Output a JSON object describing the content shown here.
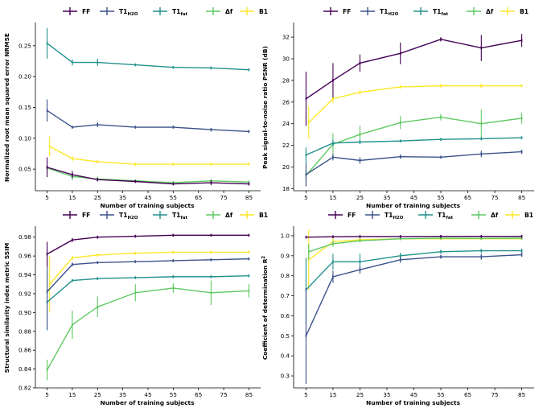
{
  "colors": {
    "FF": "#440154",
    "T1H2O": "#3b528b",
    "T1fat": "#21918c",
    "df": "#5ec962",
    "B1": "#fde725"
  },
  "legend": [
    {
      "key": "FF",
      "main": "FF",
      "sub": ""
    },
    {
      "key": "T1H2O",
      "main": "T1",
      "sub": "H2O"
    },
    {
      "key": "T1fat",
      "main": "T1",
      "sub": "fat"
    },
    {
      "key": "df",
      "main": "Δf",
      "sub": ""
    },
    {
      "key": "B1",
      "main": "B1",
      "sub": ""
    }
  ],
  "chart_data": [
    {
      "type": "line",
      "xlabel": "Number of training subjects",
      "ylabel": "Normalized root mean squared error NRMSE",
      "xticks": [
        5,
        15,
        25,
        35,
        45,
        55,
        65,
        75,
        85
      ],
      "yticks": [
        0.05,
        0.1,
        0.15,
        0.2,
        0.25
      ],
      "ylim": [
        0.015,
        0.285
      ],
      "xlim": [
        1,
        89
      ],
      "series": [
        {
          "key": "FF",
          "x": [
            5,
            15,
            25,
            40,
            55,
            70,
            85
          ],
          "y": [
            0.053,
            0.041,
            0.033,
            0.03,
            0.026,
            0.028,
            0.026
          ],
          "err": [
            0.016,
            0.006,
            0.003,
            0.002,
            0.002,
            0.004,
            0.002
          ]
        },
        {
          "key": "T1H2O",
          "x": [
            5,
            15,
            25,
            40,
            55,
            70,
            85
          ],
          "y": [
            0.145,
            0.118,
            0.122,
            0.118,
            0.118,
            0.114,
            0.111
          ],
          "err": [
            0.018,
            0.002,
            0.004,
            0.002,
            0.002,
            0.003,
            0.002
          ]
        },
        {
          "key": "T1fat",
          "x": [
            5,
            15,
            25,
            40,
            55,
            70,
            85
          ],
          "y": [
            0.254,
            0.223,
            0.223,
            0.219,
            0.215,
            0.214,
            0.211
          ],
          "err": [
            0.025,
            0.005,
            0.006,
            0.002,
            0.001,
            0.002,
            0.001
          ]
        },
        {
          "key": "df",
          "x": [
            5,
            15,
            25,
            40,
            55,
            70,
            85
          ],
          "y": [
            0.052,
            0.038,
            0.034,
            0.031,
            0.028,
            0.031,
            0.029
          ],
          "err": [
            0.004,
            0.006,
            0.004,
            0.002,
            0.001,
            0.003,
            0.002
          ]
        },
        {
          "key": "B1",
          "x": [
            6,
            15,
            25,
            40,
            55,
            70,
            85
          ],
          "y": [
            0.087,
            0.067,
            0.062,
            0.058,
            0.058,
            0.058,
            0.058
          ],
          "err": [
            0.016,
            0.004,
            0.001,
            0.001,
            0.001,
            0.001,
            0.001
          ]
        }
      ]
    },
    {
      "type": "line",
      "xlabel": "Number of training subjects",
      "ylabel": "Peak signal-to-noise ratio PSNR (dB)",
      "xticks": [
        5,
        15,
        25,
        35,
        45,
        55,
        65,
        75,
        85
      ],
      "yticks": [
        18,
        20,
        22,
        24,
        26,
        28,
        30,
        32
      ],
      "ylim": [
        17.8,
        33.2
      ],
      "xlim": [
        1,
        89
      ],
      "series": [
        {
          "key": "FF",
          "x": [
            5,
            15,
            25,
            40,
            55,
            70,
            85
          ],
          "y": [
            26.3,
            28.0,
            29.6,
            30.5,
            31.8,
            31.0,
            31.7
          ],
          "err": [
            2.5,
            1.6,
            0.8,
            1.0,
            0.2,
            1.2,
            0.6
          ]
        },
        {
          "key": "T1H2O",
          "x": [
            5,
            15,
            25,
            40,
            55,
            70,
            85
          ],
          "y": [
            19.3,
            20.9,
            20.6,
            20.95,
            20.9,
            21.2,
            21.4
          ],
          "err": [
            1.1,
            0.3,
            0.3,
            0.2,
            0.1,
            0.3,
            0.2
          ]
        },
        {
          "key": "T1fat",
          "x": [
            5,
            15,
            25,
            40,
            55,
            70,
            85
          ],
          "y": [
            21.1,
            22.2,
            22.3,
            22.4,
            22.55,
            22.6,
            22.7
          ],
          "err": [
            0.7,
            0.3,
            0.2,
            0.1,
            0.1,
            0.1,
            0.1
          ]
        },
        {
          "key": "df",
          "x": [
            5,
            15,
            25,
            40,
            55,
            70,
            85
          ],
          "y": [
            19.2,
            22.1,
            23.0,
            24.1,
            24.6,
            24.0,
            24.5
          ],
          "err": [
            1.0,
            1.0,
            0.8,
            0.6,
            0.3,
            1.3,
            0.5
          ]
        },
        {
          "key": "B1",
          "x": [
            6,
            15,
            25,
            40,
            55,
            70,
            85
          ],
          "y": [
            24.1,
            26.3,
            26.9,
            27.4,
            27.5,
            27.5,
            27.5
          ],
          "err": [
            1.5,
            0.4,
            0.2,
            0.15,
            0.15,
            0.2,
            0.1
          ]
        }
      ]
    },
    {
      "type": "line",
      "xlabel": "Number of training subjects",
      "ylabel": "Structural similarity index metric SSIM",
      "xticks": [
        5,
        15,
        25,
        35,
        45,
        55,
        65,
        75,
        85
      ],
      "yticks": [
        0.82,
        0.84,
        0.86,
        0.88,
        0.9,
        0.92,
        0.94,
        0.96,
        0.98
      ],
      "ylim": [
        0.82,
        0.99
      ],
      "xlim": [
        1,
        89
      ],
      "series": [
        {
          "key": "FF",
          "x": [
            5,
            15,
            25,
            40,
            55,
            70,
            85
          ],
          "y": [
            0.962,
            0.977,
            0.98,
            0.981,
            0.982,
            0.982,
            0.982
          ],
          "err": [
            0.013,
            0.002,
            0.001,
            0.001,
            0.001,
            0.001,
            0.001
          ]
        },
        {
          "key": "T1H2O",
          "x": [
            5,
            15,
            25,
            40,
            55,
            70,
            85
          ],
          "y": [
            0.922,
            0.951,
            0.953,
            0.954,
            0.955,
            0.956,
            0.957
          ],
          "err": [
            0.04,
            0.002,
            0.001,
            0.001,
            0.001,
            0.001,
            0.001
          ]
        },
        {
          "key": "T1fat",
          "x": [
            5,
            15,
            25,
            40,
            55,
            70,
            85
          ],
          "y": [
            0.911,
            0.934,
            0.936,
            0.937,
            0.938,
            0.938,
            0.939
          ],
          "err": [
            0.03,
            0.001,
            0.001,
            0.001,
            0.001,
            0.001,
            0.001
          ]
        },
        {
          "key": "df",
          "x": [
            5,
            15,
            25,
            40,
            55,
            70,
            85
          ],
          "y": [
            0.839,
            0.887,
            0.906,
            0.921,
            0.926,
            0.921,
            0.923
          ],
          "err": [
            0.011,
            0.015,
            0.011,
            0.009,
            0.005,
            0.013,
            0.007
          ]
        },
        {
          "key": "B1",
          "x": [
            6,
            15,
            25,
            40,
            55,
            70,
            85
          ],
          "y": [
            0.93,
            0.958,
            0.961,
            0.963,
            0.964,
            0.964,
            0.964
          ],
          "err": [
            0.03,
            0.002,
            0.001,
            0.001,
            0.001,
            0.001,
            0.001
          ]
        }
      ]
    },
    {
      "type": "line",
      "xlabel": "Number of training subjects",
      "ylabel": "Coefficient of determination R²",
      "xticks": [
        5,
        15,
        25,
        35,
        45,
        55,
        65,
        75,
        85
      ],
      "yticks": [
        0.3,
        0.4,
        0.5,
        0.6,
        0.7,
        0.8,
        0.9,
        1.0
      ],
      "ylim": [
        0.24,
        1.04
      ],
      "xlim": [
        1,
        89
      ],
      "series": [
        {
          "key": "FF",
          "x": [
            5,
            15,
            25,
            40,
            55,
            70,
            85
          ],
          "y": [
            0.993,
            0.995,
            0.996,
            0.996,
            0.997,
            0.997,
            0.997
          ],
          "err": [
            0.003,
            0.001,
            0.001,
            0.001,
            0.001,
            0.001,
            0.001
          ]
        },
        {
          "key": "T1H2O",
          "x": [
            5,
            15,
            25,
            40,
            55,
            70,
            85
          ],
          "y": [
            0.5,
            0.795,
            0.83,
            0.88,
            0.895,
            0.895,
            0.905
          ],
          "err": [
            0.24,
            0.03,
            0.02,
            0.015,
            0.01,
            0.015,
            0.01
          ]
        },
        {
          "key": "T1fat",
          "x": [
            5,
            15,
            25,
            40,
            55,
            70,
            85
          ],
          "y": [
            0.73,
            0.87,
            0.87,
            0.9,
            0.92,
            0.925,
            0.925
          ],
          "err": [
            0.16,
            0.04,
            0.04,
            0.015,
            0.01,
            0.01,
            0.01
          ]
        },
        {
          "key": "df",
          "x": [
            6,
            15,
            25,
            40,
            55,
            70,
            85
          ],
          "y": [
            0.92,
            0.96,
            0.975,
            0.985,
            0.988,
            0.987,
            0.988
          ],
          "err": [
            0.04,
            0.015,
            0.008,
            0.004,
            0.003,
            0.003,
            0.003
          ]
        },
        {
          "key": "B1",
          "x": [
            6,
            15,
            25,
            40,
            55,
            70,
            85
          ],
          "y": [
            0.88,
            0.97,
            0.98,
            0.985,
            0.985,
            0.985,
            0.985
          ],
          "err": [
            0.15,
            0.02,
            0.008,
            0.005,
            0.003,
            0.003,
            0.003
          ]
        }
      ]
    }
  ]
}
